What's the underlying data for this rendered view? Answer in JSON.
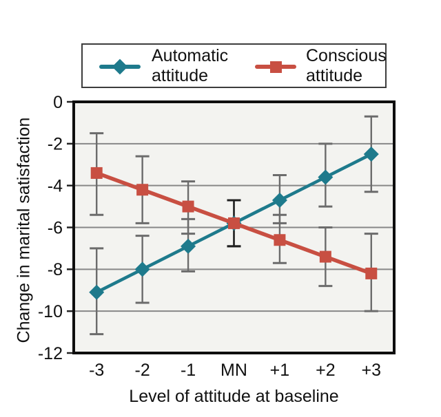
{
  "figure": {
    "xlabel": "Level of attitude at baseline",
    "ylabel": "Change in marital satisfaction"
  },
  "legend": {
    "items": [
      {
        "line1": "Automatic",
        "line2": "attitude"
      },
      {
        "line1": "Conscious",
        "line2": "attitude"
      }
    ]
  },
  "chart_data": {
    "type": "line",
    "title": "",
    "xlabel": "Level of attitude at baseline",
    "ylabel": "Change in marital satisfaction",
    "categories": [
      "-3",
      "-2",
      "-1",
      "MN",
      "+1",
      "+2",
      "+3"
    ],
    "y_ticks": [
      0,
      -2,
      -4,
      -6,
      -8,
      -10,
      -12
    ],
    "ylim": [
      -12,
      0
    ],
    "grid": "horizontal",
    "legend_position": "top",
    "error_bars": true,
    "series": [
      {
        "name": "Automatic attitude",
        "marker": "diamond",
        "color": "#1e7a8c",
        "values": [
          -9.1,
          -8.0,
          -6.9,
          -5.8,
          -4.7,
          -3.6,
          -2.5
        ],
        "error_high": [
          -7.0,
          -6.4,
          -5.6,
          -4.7,
          -3.5,
          -2.0,
          -0.7
        ],
        "error_low": [
          -11.1,
          -9.6,
          -8.1,
          -6.9,
          -5.8,
          -5.0,
          -4.3
        ]
      },
      {
        "name": "Conscious attitude",
        "marker": "square",
        "color": "#c84f42",
        "values": [
          -3.4,
          -4.2,
          -5.0,
          -5.8,
          -6.6,
          -7.4,
          -8.2
        ],
        "error_high": [
          -1.5,
          -2.6,
          -3.8,
          -4.7,
          -5.4,
          -6.0,
          -6.3
        ],
        "error_low": [
          -5.4,
          -5.8,
          -6.3,
          -6.9,
          -7.7,
          -8.8,
          -10.0
        ]
      }
    ],
    "colors": {
      "automatic": "#1e7a8c",
      "conscious": "#c84f42",
      "error_bar": "#6b6b6b",
      "error_bar_dark": "#1f1f1f",
      "gridline": "#878787",
      "plot_border": "#0e0e0e",
      "plot_background": "#f3f3f0",
      "text": "#111111"
    }
  }
}
